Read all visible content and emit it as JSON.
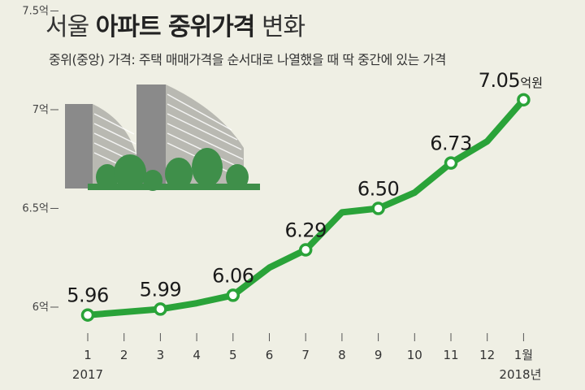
{
  "title_light": "서울 ",
  "title_bold": "아파트 중위가격",
  "title_tail": " 변화",
  "subtitle": "중위(중앙) 가격: 주택 매매가격을 순서대로 나열했을 때 딱 중간에 있는 가격",
  "colors": {
    "line": "#2aa339",
    "marker_fill": "#ffffff",
    "background": "#efefe4",
    "building": "#8a8a8a",
    "trees": "#3f8f4a"
  },
  "chart_data": {
    "type": "line",
    "title": "서울 아파트 중위가격 변화",
    "subtitle": "중위(중앙) 가격: 주택 매매가격을 순서대로 나열했을 때 딱 중간에 있는 가격",
    "x": [
      "1",
      "2",
      "3",
      "4",
      "5",
      "6",
      "7",
      "8",
      "9",
      "10",
      "11",
      "12",
      "1월"
    ],
    "x_year_labels": [
      {
        "index": 0,
        "label": "2017"
      },
      {
        "index": 12,
        "label": "2018년"
      }
    ],
    "series": [
      {
        "values": [
          5.96,
          5.975,
          5.99,
          6.02,
          6.06,
          6.2,
          6.29,
          6.48,
          6.5,
          6.58,
          6.73,
          6.84,
          7.05
        ]
      }
    ],
    "data_labels": [
      {
        "index": 0,
        "text": "5.96"
      },
      {
        "index": 2,
        "text": "5.99"
      },
      {
        "index": 4,
        "text": "6.06"
      },
      {
        "index": 6,
        "text": "6.29"
      },
      {
        "index": 8,
        "text": "6.50"
      },
      {
        "index": 10,
        "text": "6.73"
      },
      {
        "index": 12,
        "text": "7.05",
        "unit": "억원"
      }
    ],
    "y_ticks": [
      {
        "value": 6,
        "label": "6억"
      },
      {
        "value": 6.5,
        "label": "6.5억"
      },
      {
        "value": 7,
        "label": "7억"
      },
      {
        "value": 7.5,
        "label": "7.5억"
      }
    ],
    "ylim": [
      6,
      7.5
    ],
    "grid": false,
    "legend": "none"
  }
}
